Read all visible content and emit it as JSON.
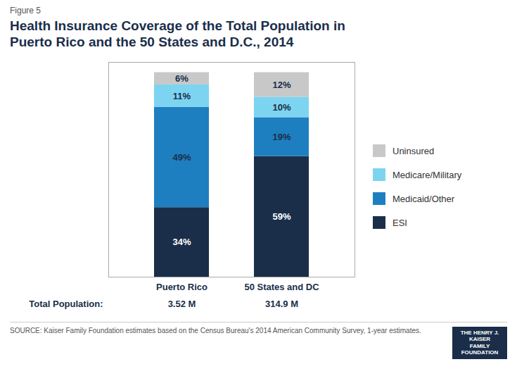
{
  "chart_data": {
    "type": "bar",
    "stacked": true,
    "data_labels": true,
    "tick_labels": "x",
    "legend": "right",
    "title": "Health Insurance Coverage of the Total Population in\nPuerto Rico and the 50 States and D.C., 2014",
    "subtitle": "Figure 5",
    "source": "SOURCE: Kaiser Family Foundation estimates based on the Census Bureau's 2014 American Community Survey, 1-year estimates.",
    "annotations": [
      "THE HENRY J.\nKAISER\nFAMILY\nFOUNDATION"
    ],
    "categories": [
      "Puerto Rico",
      "50 States and DC"
    ],
    "populations": {
      "label": "Total Population:",
      "values": [
        "3.52 M",
        "314.9 M"
      ]
    },
    "series": [
      {
        "name": "ESI",
        "color": "#1a2e4a",
        "values": [
          34,
          59
        ],
        "value_labels": [
          "34%",
          "59%"
        ]
      },
      {
        "name": "Medicaid/Other",
        "color": "#1e7fc0",
        "values": [
          49,
          19
        ],
        "value_labels": [
          "49%",
          "19%"
        ]
      },
      {
        "name": "Medicare/Military",
        "color": "#7dd4f0",
        "values": [
          11,
          10
        ],
        "value_labels": [
          "11%",
          "10%"
        ]
      },
      {
        "name": "Uninsured",
        "color": "#c8c8c8",
        "values": [
          6,
          12
        ],
        "value_labels": [
          "6%",
          "12%"
        ]
      }
    ],
    "ylim": [
      0,
      105
    ]
  }
}
